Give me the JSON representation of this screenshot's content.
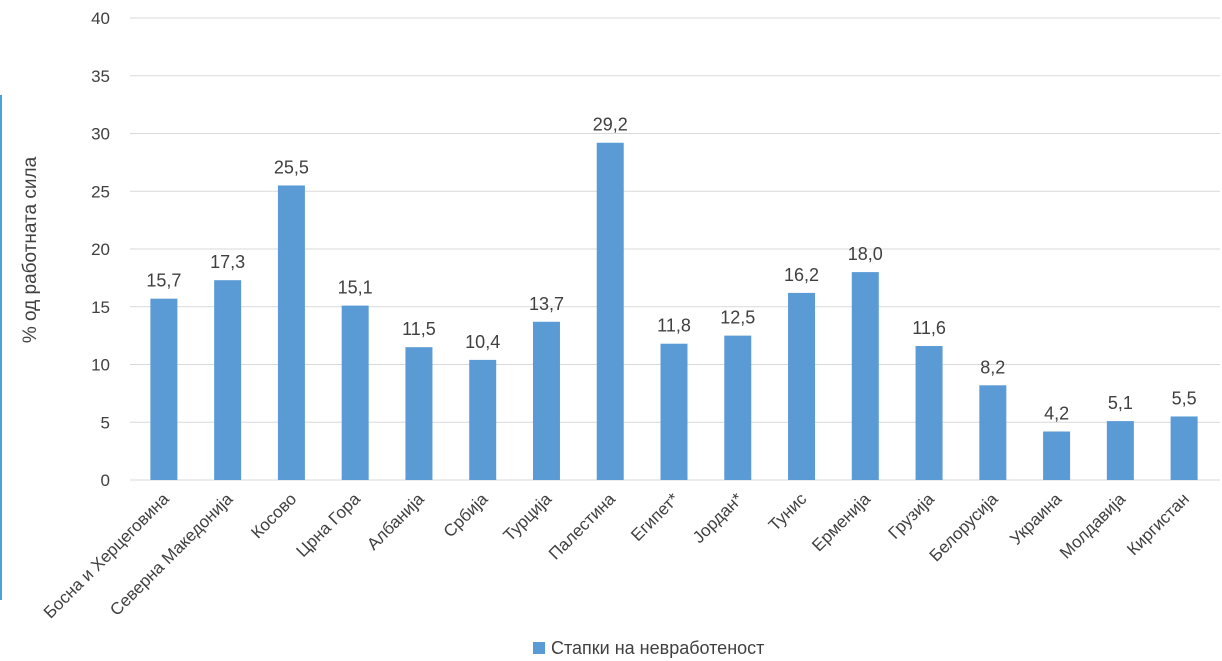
{
  "chart_data": {
    "type": "bar",
    "categories": [
      "Босна и Херцеговина",
      "Северна Македонија",
      "Косово",
      "Црна Гора",
      "Албанија",
      "Србија",
      "Турција",
      "Палестина",
      "Египет*",
      "Јордан*",
      "Тунис",
      "Ерменија",
      "Грузија",
      "Белорусија",
      "Украина",
      "Молдавија",
      "Киргистан"
    ],
    "series": [
      {
        "name": "Стапки на невработеност",
        "values": [
          15.7,
          17.3,
          25.5,
          15.1,
          11.5,
          10.4,
          13.7,
          29.2,
          11.8,
          12.5,
          16.2,
          18.0,
          11.6,
          8.2,
          4.2,
          5.1,
          5.5
        ],
        "labels": [
          "15,7",
          "17,3",
          "25,5",
          "15,1",
          "11,5",
          "10,4",
          "13,7",
          "29,2",
          "11,8",
          "12,5",
          "16,2",
          "18,0",
          "11,6",
          "8,2",
          "4,2",
          "5,1",
          "5,5"
        ],
        "color": "#5b9bd5"
      }
    ],
    "title": "",
    "xlabel": "",
    "ylabel": "% од работната сила",
    "ylim": [
      0,
      40
    ],
    "yticks": [
      0,
      5,
      10,
      15,
      20,
      25,
      30,
      35,
      40
    ],
    "grid": true,
    "legend": "bottom"
  },
  "colors": {
    "bar": "#5b9bd5",
    "grid": "#d9d9d9",
    "text": "#404040",
    "accent_rule": "#4aa3d8"
  }
}
